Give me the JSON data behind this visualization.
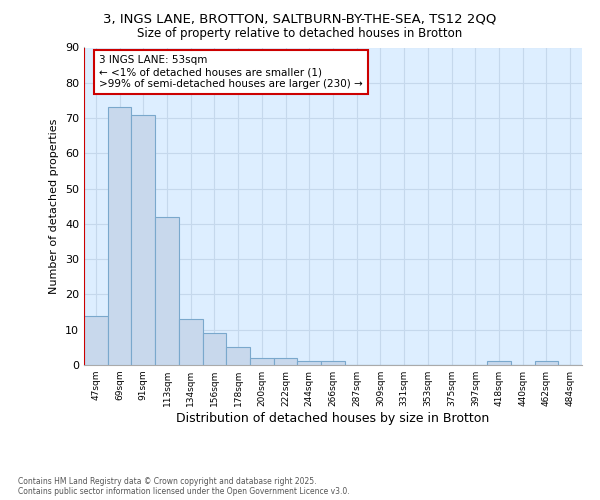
{
  "title1": "3, INGS LANE, BROTTON, SALTBURN-BY-THE-SEA, TS12 2QQ",
  "title2": "Size of property relative to detached houses in Brotton",
  "xlabel": "Distribution of detached houses by size in Brotton",
  "ylabel": "Number of detached properties",
  "bin_labels": [
    "47sqm",
    "69sqm",
    "91sqm",
    "113sqm",
    "134sqm",
    "156sqm",
    "178sqm",
    "200sqm",
    "222sqm",
    "244sqm",
    "266sqm",
    "287sqm",
    "309sqm",
    "331sqm",
    "353sqm",
    "375sqm",
    "397sqm",
    "418sqm",
    "440sqm",
    "462sqm",
    "484sqm"
  ],
  "bar_heights": [
    14,
    73,
    71,
    42,
    13,
    9,
    5,
    2,
    2,
    1,
    1,
    0,
    0,
    0,
    0,
    0,
    0,
    1,
    0,
    1,
    0
  ],
  "bar_color": "#c8d8ec",
  "bar_edge_color": "#7aa8cc",
  "subject_line_color": "#cc0000",
  "annotation_title": "3 INGS LANE: 53sqm",
  "annotation_line1": "← <1% of detached houses are smaller (1)",
  "annotation_line2": ">99% of semi-detached houses are larger (230) →",
  "annotation_box_facecolor": "#ffffff",
  "annotation_box_edgecolor": "#cc0000",
  "ylim": [
    0,
    90
  ],
  "yticks": [
    0,
    10,
    20,
    30,
    40,
    50,
    60,
    70,
    80,
    90
  ],
  "grid_color": "#c5d8ec",
  "plot_background_color": "#ddeeff",
  "figure_background_color": "#ffffff",
  "footer_text": "Contains HM Land Registry data © Crown copyright and database right 2025.\nContains public sector information licensed under the Open Government Licence v3.0."
}
